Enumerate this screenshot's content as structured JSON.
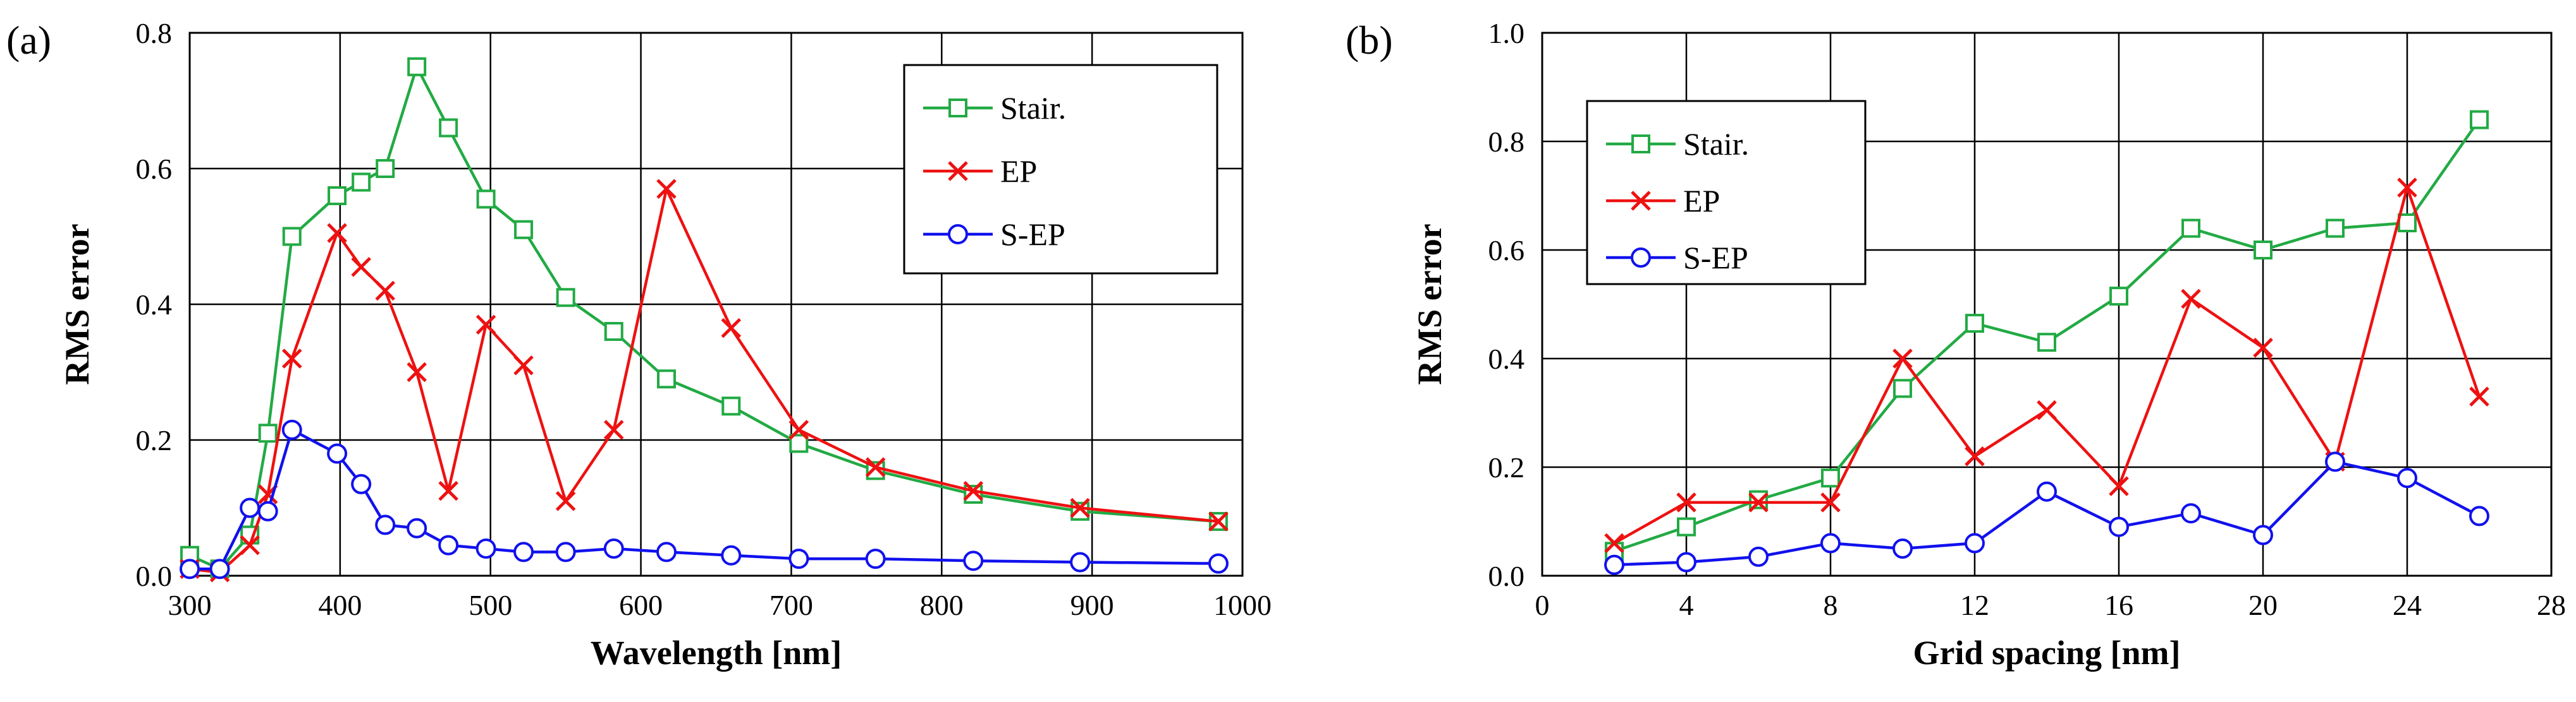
{
  "chart_data": [
    {
      "type": "line",
      "panel_label": "(a)",
      "title": "",
      "xlabel": "Wavelength [nm]",
      "ylabel": "RMS error",
      "xlim": [
        300,
        1000
      ],
      "ylim": [
        0,
        0.8
      ],
      "xticks": [
        300,
        400,
        500,
        600,
        700,
        800,
        900,
        1000
      ],
      "yticks": [
        0.0,
        0.2,
        0.4,
        0.6,
        0.8
      ],
      "xtick_labels": [
        "300",
        "400",
        "500",
        "600",
        "700",
        "800",
        "900",
        "1000"
      ],
      "ytick_labels": [
        "0.0",
        "0.2",
        "0.4",
        "0.6",
        "0.8"
      ],
      "grid": true,
      "legend_position": "top-right",
      "series": [
        {
          "name": "Stair.",
          "color": "#22aa44",
          "marker": "square",
          "x": [
            300,
            320,
            340,
            352,
            368,
            398,
            414,
            430,
            451,
            472,
            497,
            522,
            550,
            582,
            617,
            660,
            705,
            756,
            821,
            892,
            984
          ],
          "y": [
            0.03,
            0.01,
            0.06,
            0.21,
            0.5,
            0.56,
            0.58,
            0.6,
            0.75,
            0.66,
            0.555,
            0.51,
            0.41,
            0.36,
            0.29,
            0.25,
            0.195,
            0.155,
            0.12,
            0.095,
            0.08
          ]
        },
        {
          "name": "EP",
          "color": "#ee1111",
          "marker": "x",
          "x": [
            300,
            320,
            340,
            352,
            368,
            398,
            414,
            430,
            451,
            472,
            497,
            522,
            550,
            582,
            617,
            660,
            705,
            756,
            821,
            892,
            984
          ],
          "y": [
            0.01,
            0.005,
            0.045,
            0.12,
            0.32,
            0.505,
            0.455,
            0.42,
            0.3,
            0.125,
            0.37,
            0.31,
            0.11,
            0.215,
            0.57,
            0.365,
            0.215,
            0.16,
            0.125,
            0.1,
            0.08
          ]
        },
        {
          "name": "S-EP",
          "color": "#1111ee",
          "marker": "circle",
          "x": [
            300,
            320,
            340,
            352,
            368,
            398,
            414,
            430,
            451,
            472,
            497,
            522,
            550,
            582,
            617,
            660,
            705,
            756,
            821,
            892,
            984
          ],
          "y": [
            0.01,
            0.01,
            0.1,
            0.095,
            0.215,
            0.18,
            0.135,
            0.075,
            0.07,
            0.045,
            0.04,
            0.035,
            0.035,
            0.04,
            0.035,
            0.03,
            0.025,
            0.025,
            0.022,
            0.02,
            0.018
          ]
        }
      ]
    },
    {
      "type": "line",
      "panel_label": "(b)",
      "title": "",
      "xlabel": "Grid spacing [nm]",
      "ylabel": "RMS error",
      "xlim": [
        0,
        28
      ],
      "ylim": [
        0,
        1.0
      ],
      "xticks": [
        0,
        4,
        8,
        12,
        16,
        20,
        24,
        28
      ],
      "yticks": [
        0.0,
        0.2,
        0.4,
        0.6,
        0.8,
        1.0
      ],
      "xtick_labels": [
        "0",
        "4",
        "8",
        "12",
        "16",
        "20",
        "24",
        "28"
      ],
      "ytick_labels": [
        "0.0",
        "0.2",
        "0.4",
        "0.6",
        "0.8",
        "1.0"
      ],
      "grid": true,
      "legend_position": "top-left",
      "series": [
        {
          "name": "Stair.",
          "color": "#22aa44",
          "marker": "square",
          "x": [
            2,
            4,
            6,
            8,
            10,
            12,
            14,
            16,
            18,
            20,
            22,
            24,
            26
          ],
          "y": [
            0.045,
            0.09,
            0.14,
            0.18,
            0.345,
            0.465,
            0.43,
            0.515,
            0.64,
            0.6,
            0.64,
            0.65,
            0.84
          ]
        },
        {
          "name": "EP",
          "color": "#ee1111",
          "marker": "x",
          "x": [
            2,
            4,
            6,
            8,
            10,
            12,
            14,
            16,
            18,
            20,
            22,
            24,
            26
          ],
          "y": [
            0.06,
            0.135,
            0.135,
            0.135,
            0.4,
            0.22,
            0.305,
            0.165,
            0.51,
            0.42,
            0.21,
            0.715,
            0.33
          ]
        },
        {
          "name": "S-EP",
          "color": "#1111ee",
          "marker": "circle",
          "x": [
            2,
            4,
            6,
            8,
            10,
            12,
            14,
            16,
            18,
            20,
            22,
            24,
            26
          ],
          "y": [
            0.02,
            0.025,
            0.035,
            0.06,
            0.05,
            0.06,
            0.155,
            0.09,
            0.115,
            0.075,
            0.21,
            0.18,
            0.11
          ]
        }
      ]
    }
  ]
}
